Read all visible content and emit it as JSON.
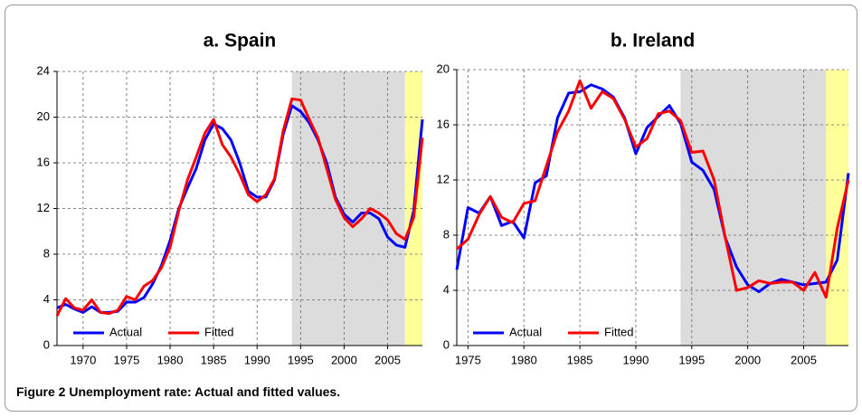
{
  "chart_data": [
    {
      "type": "line",
      "title": "a. Spain",
      "x": [
        1967,
        1968,
        1969,
        1970,
        1971,
        1972,
        1973,
        1974,
        1975,
        1976,
        1977,
        1978,
        1979,
        1980,
        1981,
        1982,
        1983,
        1984,
        1985,
        1986,
        1987,
        1988,
        1989,
        1990,
        1991,
        1992,
        1993,
        1994,
        1995,
        1996,
        1997,
        1998,
        1999,
        2000,
        2001,
        2002,
        2003,
        2004,
        2005,
        2006,
        2007,
        2008,
        2009
      ],
      "series": [
        {
          "name": "Actual",
          "color": "#0000ff",
          "values": [
            3.3,
            3.6,
            3.2,
            2.9,
            3.4,
            2.9,
            2.9,
            3.0,
            3.8,
            3.8,
            4.2,
            5.4,
            7.0,
            9.2,
            12.0,
            13.8,
            15.5,
            18.0,
            19.4,
            19.0,
            18.0,
            16.0,
            13.5,
            13.0,
            13.0,
            14.5,
            18.5,
            21.0,
            20.5,
            19.5,
            18.0,
            16.0,
            13.0,
            11.5,
            10.8,
            11.6,
            11.6,
            11.1,
            9.5,
            8.8,
            8.6,
            11.8,
            19.8
          ]
        },
        {
          "name": "Fitted",
          "color": "#ff0000",
          "values": [
            2.6,
            4.1,
            3.3,
            3.1,
            4.0,
            2.9,
            2.8,
            3.1,
            4.3,
            4.0,
            5.2,
            5.7,
            6.8,
            8.6,
            11.8,
            14.5,
            16.5,
            18.6,
            19.8,
            17.6,
            16.5,
            15.0,
            13.2,
            12.6,
            13.2,
            14.6,
            18.8,
            21.6,
            21.5,
            19.8,
            18.2,
            15.5,
            12.8,
            11.2,
            10.4,
            11.1,
            12.0,
            11.6,
            11.0,
            9.8,
            9.3,
            11.2,
            18.2
          ]
        }
      ],
      "shaded": [
        {
          "from": 1994,
          "to": 2007,
          "color": "#dcdcdc"
        },
        {
          "from": 2007,
          "to": 2009,
          "color": "#ffff99"
        }
      ],
      "xlim": [
        1967,
        2009
      ],
      "xticks": [
        1970,
        1975,
        1980,
        1985,
        1990,
        1995,
        2000,
        2005
      ],
      "ylim": [
        0,
        24
      ],
      "yticks": [
        0,
        4,
        8,
        12,
        16,
        20,
        24
      ],
      "grid": true,
      "legend": "lower left"
    },
    {
      "type": "line",
      "title": "b. Ireland",
      "x": [
        1974,
        1975,
        1976,
        1977,
        1978,
        1979,
        1980,
        1981,
        1982,
        1983,
        1984,
        1985,
        1986,
        1987,
        1988,
        1989,
        1990,
        1991,
        1992,
        1993,
        1994,
        1995,
        1996,
        1997,
        1998,
        1999,
        2000,
        2001,
        2002,
        2003,
        2004,
        2005,
        2006,
        2007,
        2008,
        2009
      ],
      "series": [
        {
          "name": "Actual",
          "color": "#0000ff",
          "values": [
            5.5,
            10.0,
            9.6,
            10.8,
            8.7,
            9.0,
            7.8,
            11.8,
            12.3,
            16.5,
            18.3,
            18.4,
            18.9,
            18.6,
            18.0,
            16.5,
            13.9,
            15.8,
            16.6,
            17.4,
            16.1,
            13.3,
            12.7,
            11.3,
            7.8,
            5.7,
            4.4,
            3.9,
            4.5,
            4.8,
            4.6,
            4.4,
            4.5,
            4.6,
            6.2,
            12.5
          ]
        },
        {
          "name": "Fitted",
          "color": "#ff0000",
          "values": [
            7.0,
            7.7,
            9.5,
            10.8,
            9.3,
            8.9,
            10.3,
            10.5,
            13.0,
            15.5,
            17.0,
            19.2,
            17.2,
            18.4,
            17.9,
            16.4,
            14.4,
            15.0,
            16.8,
            17.0,
            16.3,
            14.0,
            14.1,
            12.0,
            7.8,
            4.0,
            4.2,
            4.7,
            4.5,
            4.6,
            4.6,
            4.0,
            5.3,
            3.5,
            8.5,
            12.0
          ]
        }
      ],
      "shaded": [
        {
          "from": 1994,
          "to": 2007,
          "color": "#dcdcdc"
        },
        {
          "from": 2007,
          "to": 2009,
          "color": "#ffff99"
        }
      ],
      "xlim": [
        1974,
        2009
      ],
      "xticks": [
        1975,
        1980,
        1985,
        1990,
        1995,
        2000,
        2005
      ],
      "ylim": [
        0,
        20
      ],
      "yticks": [
        0,
        4,
        8,
        12,
        16,
        20
      ],
      "grid": true,
      "legend": "lower left"
    }
  ],
  "caption": "Figure 2 Unemployment rate: Actual and fitted values."
}
